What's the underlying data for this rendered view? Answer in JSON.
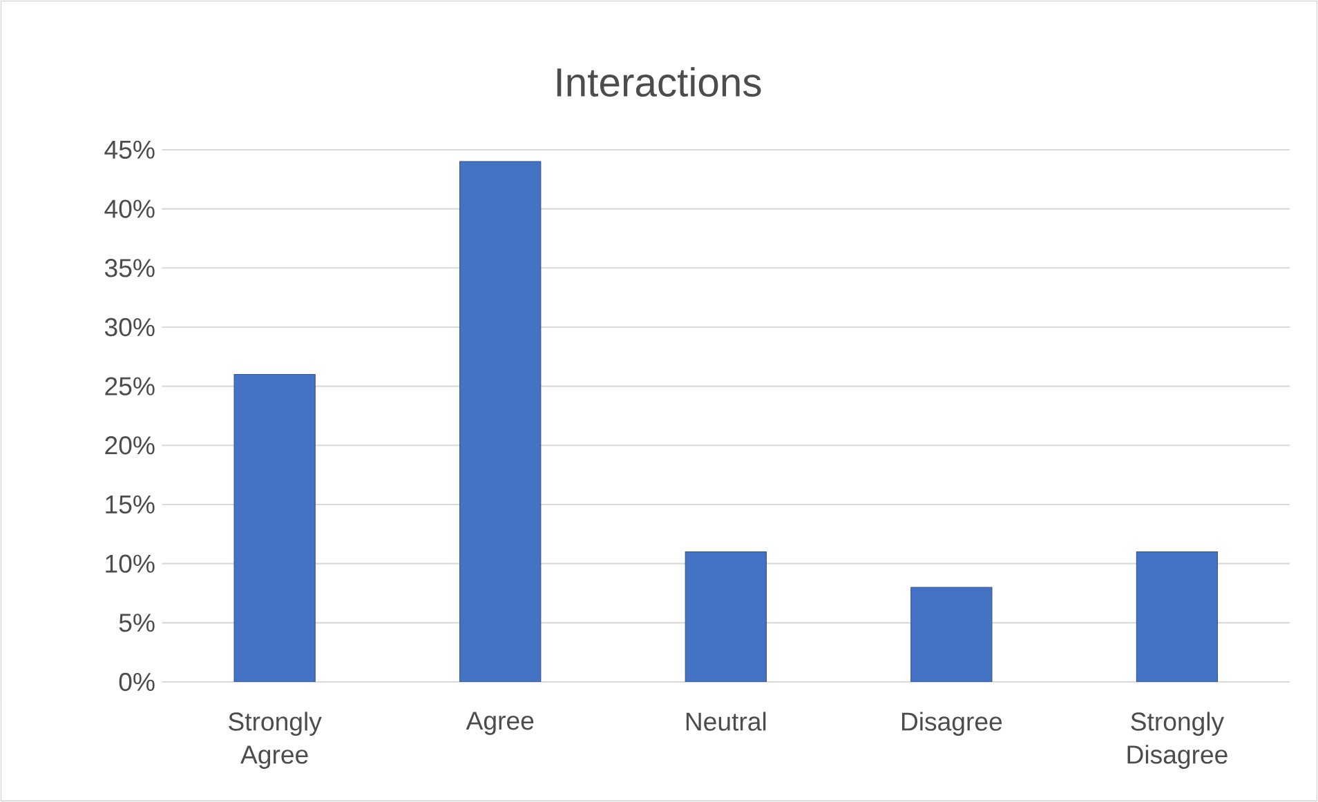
{
  "chart_data": {
    "type": "bar",
    "title": "Interactions",
    "categories": [
      "Strongly Agree",
      "Agree",
      "Neutral",
      "Disagree",
      "Strongly Disagree"
    ],
    "values": [
      26,
      44,
      11,
      8,
      11
    ],
    "color": "#4472c4",
    "ylim": [
      0,
      45
    ],
    "yticks": [
      {
        "value": 0,
        "label": "0%"
      },
      {
        "value": 5,
        "label": "5%"
      },
      {
        "value": 10,
        "label": "10%"
      },
      {
        "value": 15,
        "label": "15%"
      },
      {
        "value": 20,
        "label": "20%"
      },
      {
        "value": 25,
        "label": "25%"
      },
      {
        "value": 30,
        "label": "30%"
      },
      {
        "value": 35,
        "label": "35%"
      },
      {
        "value": 40,
        "label": "40%"
      },
      {
        "value": 45,
        "label": "45%"
      }
    ],
    "grid": "y"
  }
}
